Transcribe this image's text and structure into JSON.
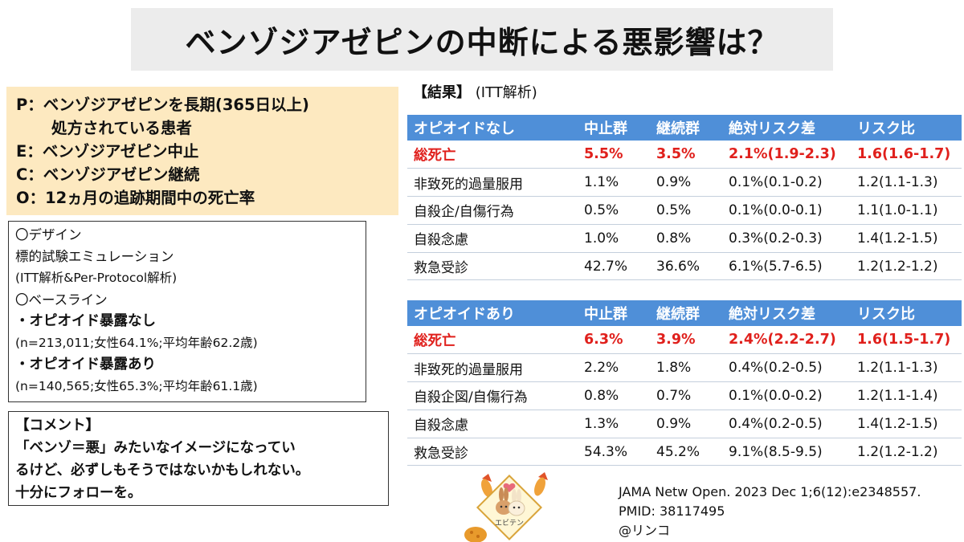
{
  "title": "ベンゾジアゼピンの中断による悪影響は？",
  "pico": [
    "P：ベンゾジアゼピンを長期(365日以上)",
    "処方されている患者",
    "E：ベンゾジアゼピン中止",
    "C：ベンゾジアゼピン継続",
    "O：12ヵ月の追跡期間中の死亡率"
  ],
  "design": {
    "heading": "〇デザイン",
    "line1": "標的試験エミュレーション",
    "line2": "(ITT解析&Per-Protocol解析)",
    "baseline_heading": "〇ベースライン",
    "group1_label": "・オピオイド暴露なし",
    "group1_detail": "(n=213,011;女性64.1%;平均年齢62.2歳)",
    "group2_label": "・オピオイド暴露あり",
    "group2_detail": "(n=140,565;女性65.3%;平均年齢61.1歳)"
  },
  "comment": {
    "heading": "【コメント】",
    "line1": "「ベンゾ＝悪」みたいなイメージになってい",
    "line2": "るけど、必ずしもそうではないかもしれない。",
    "line3": "十分にフォローを。"
  },
  "result_label": {
    "bracket": "【結果】",
    "type": "(ITT解析)"
  },
  "table1": {
    "headers": [
      "オピオイドなし",
      "中止群",
      "継続群",
      "絶対リスク差",
      "リスク比"
    ],
    "rows": [
      [
        "総死亡",
        "5.5%",
        "3.5%",
        "2.1%(1.9-2.3)",
        "1.6(1.6-1.7)"
      ],
      [
        "非致死的過量服用",
        "1.1%",
        "0.9%",
        "0.1%(0.1-0.2)",
        "1.2(1.1-1.3)"
      ],
      [
        "自殺企/自傷行為",
        "0.5%",
        "0.5%",
        "0.1%(0.0-0.1)",
        "1.1(1.0-1.1)"
      ],
      [
        "自殺念慮",
        "1.0%",
        "0.8%",
        "0.3%(0.2-0.3)",
        "1.4(1.2-1.5)"
      ],
      [
        "救急受診",
        "42.7%",
        "36.6%",
        "6.1%(5.7-6.5)",
        "1.2(1.2-1.2)"
      ]
    ]
  },
  "table2": {
    "headers": [
      "オピオイドあり",
      "中止群",
      "継続群",
      "絶対リスク差",
      "リスク比"
    ],
    "rows": [
      [
        "総死亡",
        "6.3%",
        "3.9%",
        "2.4%(2.2-2.7)",
        "1.6(1.5-1.7)"
      ],
      [
        "非致死的過量服用",
        "2.2%",
        "1.8%",
        "0.4%(0.2-0.5)",
        "1.2(1.1-1.3)"
      ],
      [
        "自殺企図/自傷行為",
        "0.8%",
        "0.7%",
        "0.1%(0.0-0.2)",
        "1.2(1.1-1.4)"
      ],
      [
        "自殺念慮",
        "1.3%",
        "0.9%",
        "0.4%(0.2-0.5)",
        "1.4(1.2-1.5)"
      ],
      [
        "救急受診",
        "54.3%",
        "45.2%",
        "9.1%(8.5-9.5)",
        "1.2(1.2-1.2)"
      ]
    ]
  },
  "citation": {
    "line1": "JAMA Netw Open. 2023 Dec 1;6(12):e2348557.",
    "line2": "PMID: 38117495",
    "line3": "@リンコ"
  },
  "logo": {
    "text": "エビテン",
    "icon": "rabbit-mascot-icon"
  },
  "colors": {
    "header_blue": "#4f8fd8",
    "highlight_red": "#e0201c",
    "pico_bg": "#fde9c0",
    "title_bg": "#ececec"
  }
}
